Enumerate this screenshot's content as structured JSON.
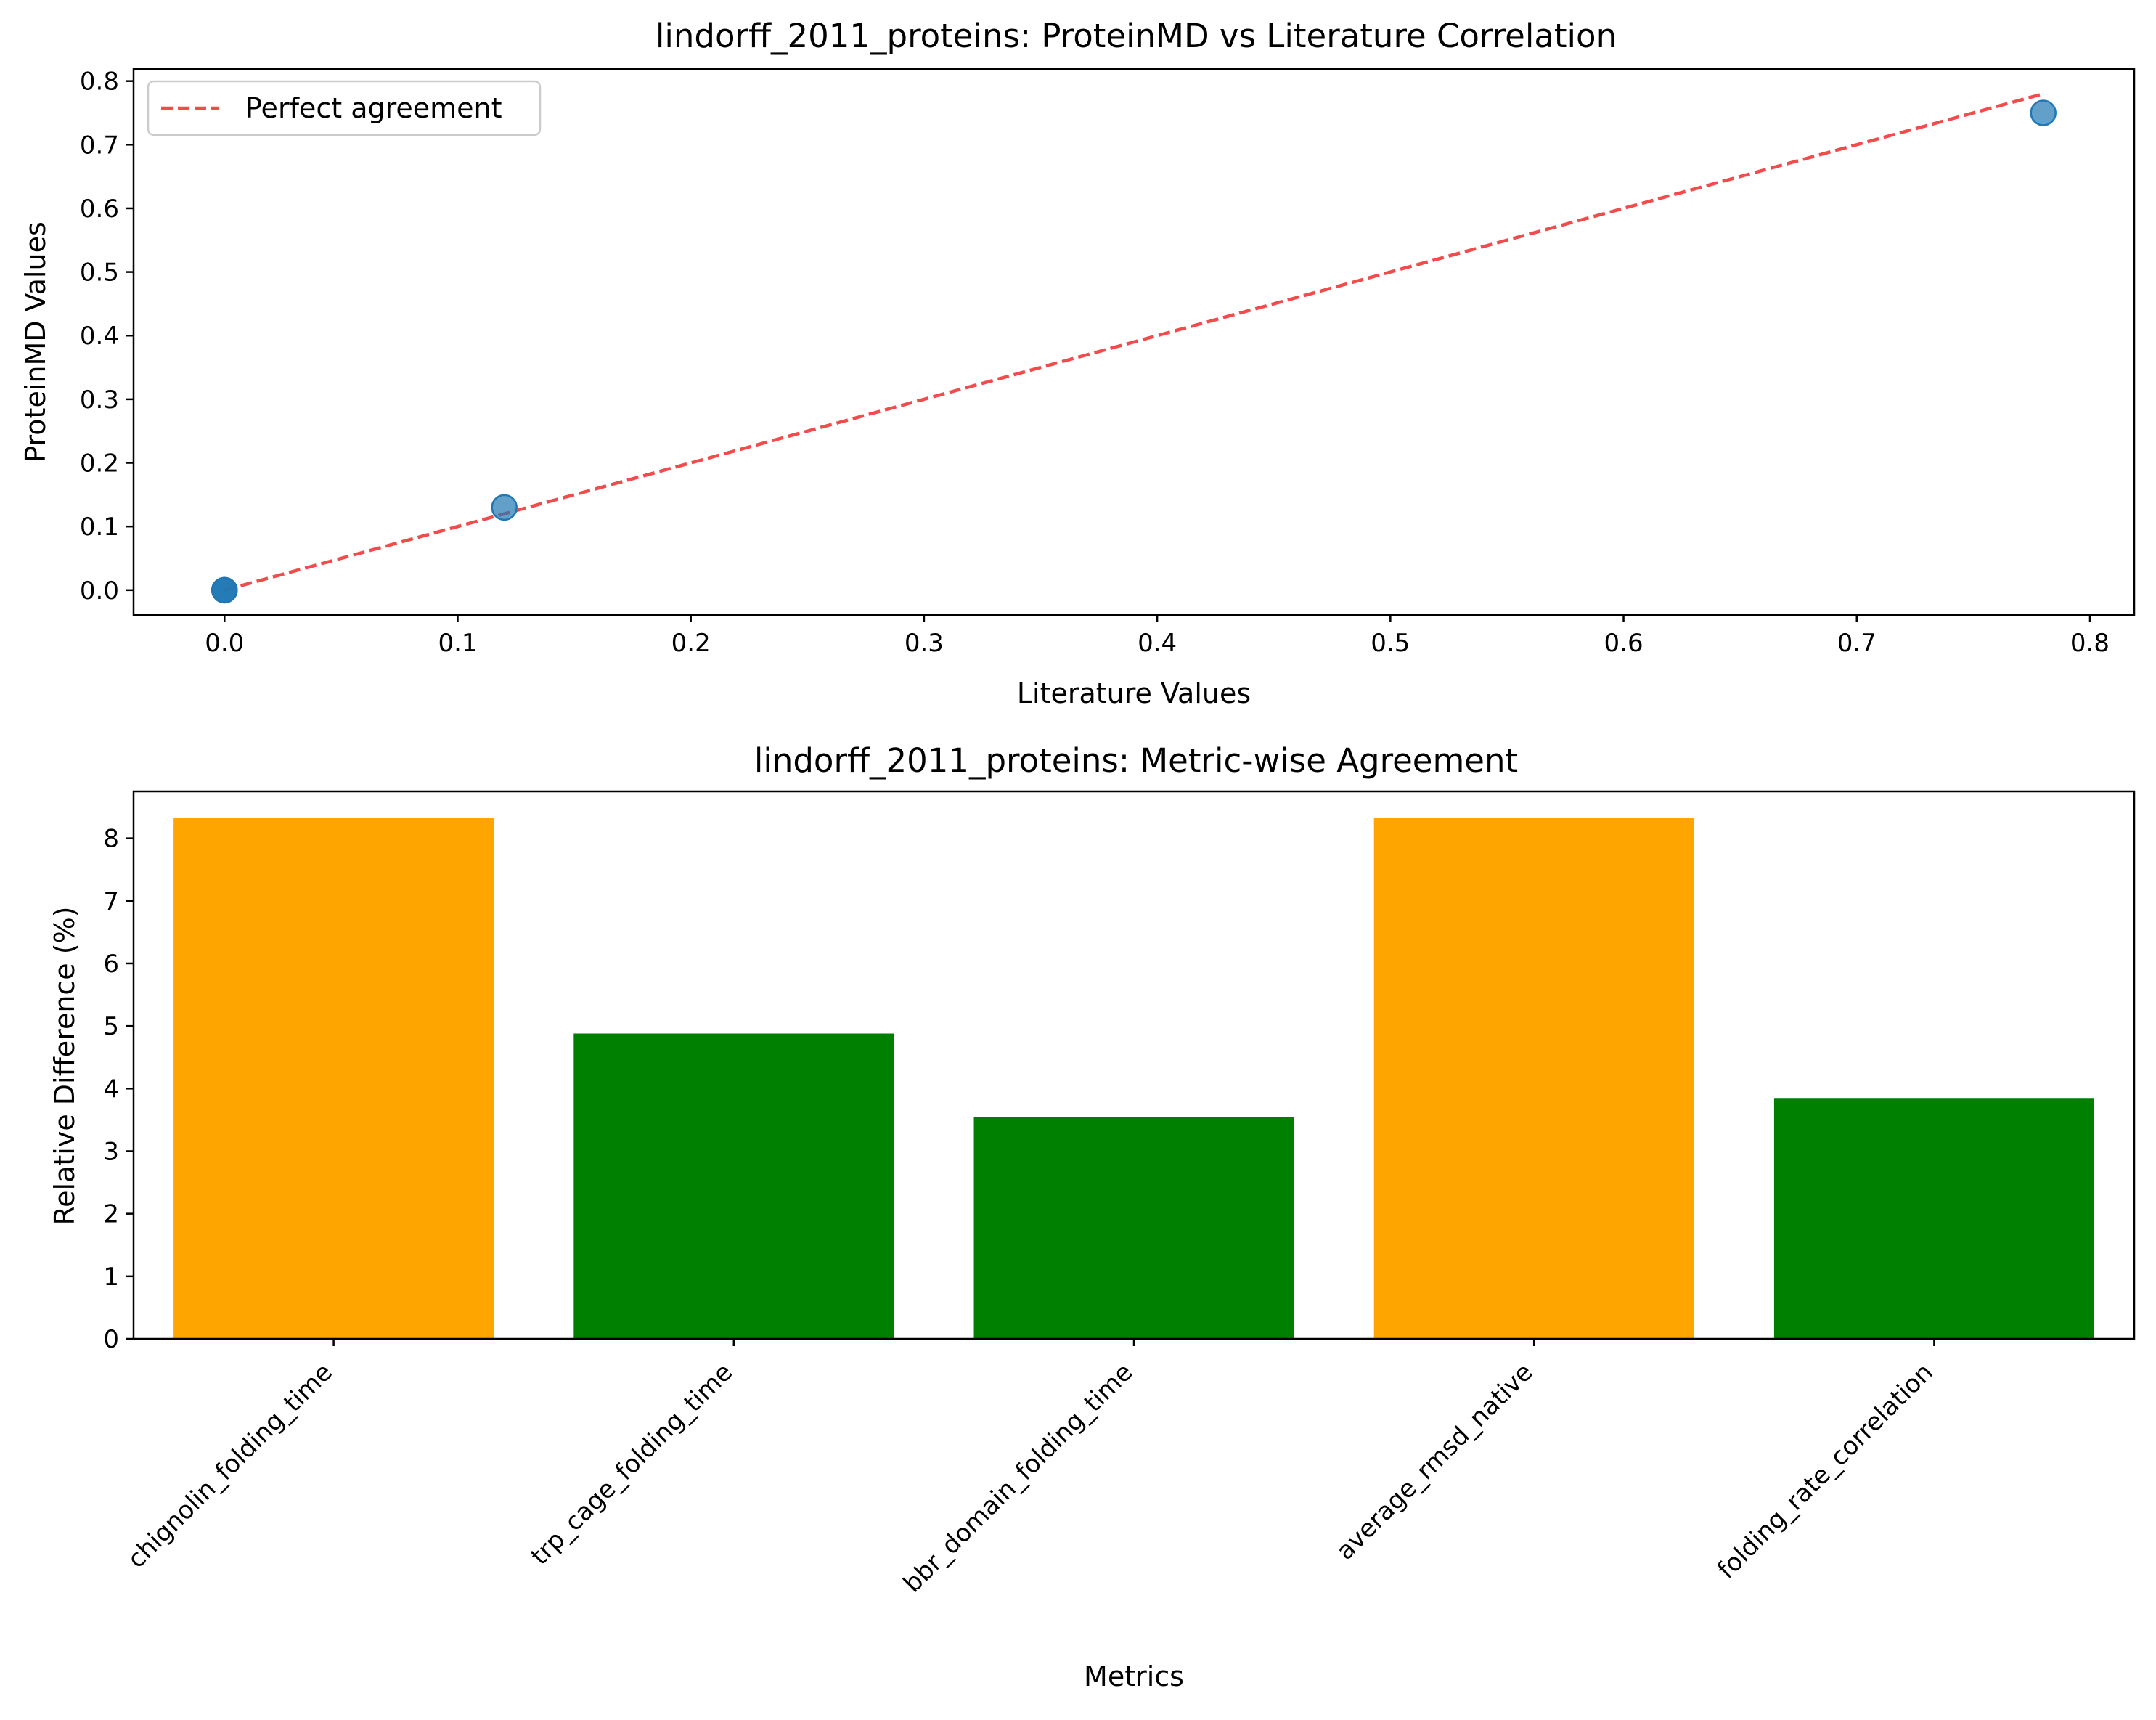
{
  "chart_data": [
    {
      "type": "scatter",
      "title": "lindorff_2011_proteins: ProteinMD vs Literature Correlation",
      "xlabel": "Literature Values",
      "ylabel": "ProteinMD Values",
      "xlim": [
        -0.039,
        0.819
      ],
      "ylim": [
        -0.039,
        0.819
      ],
      "xticks": [
        "0.0",
        "0.1",
        "0.2",
        "0.3",
        "0.4",
        "0.5",
        "0.6",
        "0.7",
        "0.8"
      ],
      "yticks": [
        "0.0",
        "0.1",
        "0.2",
        "0.3",
        "0.4",
        "0.5",
        "0.6",
        "0.7",
        "0.8"
      ],
      "points": [
        {
          "x": 0.0,
          "y": 0.0
        },
        {
          "x": 0.0,
          "y": 0.0
        },
        {
          "x": 0.0,
          "y": 0.0
        },
        {
          "x": 0.12,
          "y": 0.13
        },
        {
          "x": 0.78,
          "y": 0.75
        }
      ],
      "point_color": "#1f77b4",
      "reference_line": {
        "name": "Perfect agreement",
        "x": [
          0.0,
          0.78
        ],
        "y": [
          0.0,
          0.78
        ],
        "color": "#f24b4b",
        "style": "dashed"
      },
      "legend": {
        "position": "top-left",
        "entries": [
          "Perfect agreement"
        ]
      }
    },
    {
      "type": "bar",
      "title": "lindorff_2011_proteins: Metric-wise Agreement",
      "xlabel": "Metrics",
      "ylabel": "Relative Difference (%)",
      "ylim": [
        0,
        8.75
      ],
      "yticks": [
        "0",
        "1",
        "2",
        "3",
        "4",
        "5",
        "6",
        "7",
        "8"
      ],
      "categories": [
        "chignolin_folding_time",
        "trp_cage_folding_time",
        "bbr_domain_folding_time",
        "average_rmsd_native",
        "folding_rate_correlation"
      ],
      "values": [
        8.33,
        4.88,
        3.54,
        8.33,
        3.85
      ],
      "colors": [
        "#ffa500",
        "#008000",
        "#008000",
        "#ffa500",
        "#008000"
      ]
    }
  ]
}
